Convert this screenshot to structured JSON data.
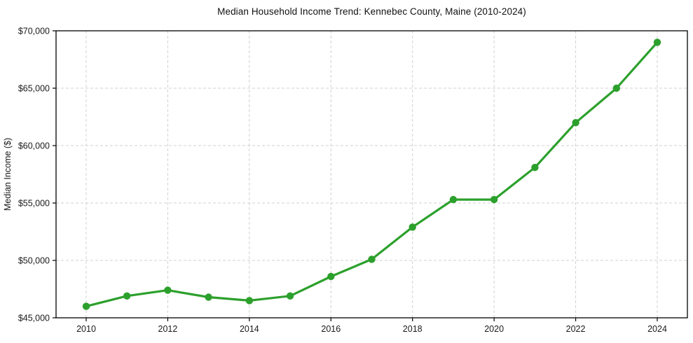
{
  "chart_data": {
    "type": "line",
    "title": "Median Household Income Trend: Kennebec County, Maine (2010-2024)",
    "xlabel": "",
    "ylabel": "Median Income ($)",
    "x": [
      2010,
      2011,
      2012,
      2013,
      2014,
      2015,
      2016,
      2017,
      2018,
      2019,
      2020,
      2021,
      2022,
      2023,
      2024
    ],
    "series": [
      {
        "name": "Median Household Income",
        "color": "#2ca02c",
        "marker": "circle",
        "values": [
          46000,
          46900,
          47400,
          46800,
          46500,
          46900,
          48600,
          50100,
          52900,
          55300,
          55300,
          58100,
          62000,
          65000,
          69000
        ]
      }
    ],
    "ylim": [
      45000,
      70000
    ],
    "y_ticks": [
      45000,
      50000,
      55000,
      60000,
      65000,
      70000
    ],
    "y_tick_labels": [
      "$45,000",
      "$50,000",
      "$55,000",
      "$60,000",
      "$65,000",
      "$70,000"
    ],
    "x_ticks": [
      2010,
      2012,
      2014,
      2016,
      2018,
      2020,
      2022,
      2024
    ],
    "x_tick_labels": [
      "2010",
      "2012",
      "2014",
      "2016",
      "2018",
      "2020",
      "2022",
      "2024"
    ],
    "grid": "dashed",
    "legend": "none",
    "colors": {
      "line": "#2ca02c",
      "grid": "#d0d0d0",
      "axis": "#000000",
      "text": "#1a1a1a",
      "background": "#ffffff"
    }
  }
}
